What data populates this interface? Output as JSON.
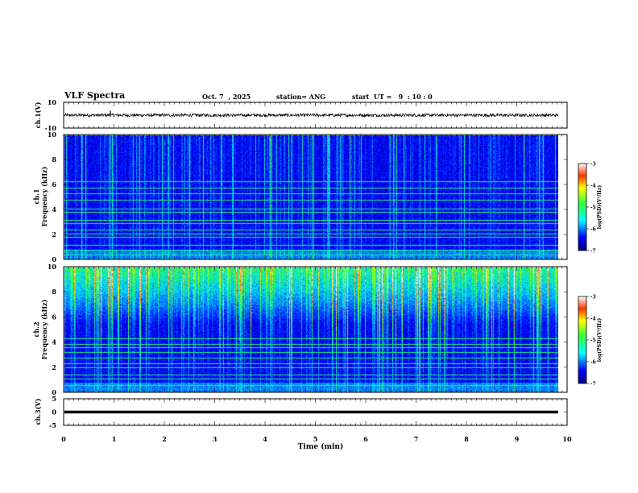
{
  "header": {
    "title": "VLF Spectra",
    "date": "Oct. 7  , 2025",
    "station": "station= ANG",
    "start": "start  UT =   9  : 10 : 0"
  },
  "chart_data": [
    {
      "type": "line",
      "name": "ch1-waveform",
      "ylabel": "ch.1(V)",
      "ylim": [
        -10,
        10
      ],
      "ytick_labels": [
        "10",
        "-10"
      ],
      "baseline": 0,
      "noise_amplitude": 1.2,
      "spikes": [
        {
          "x": 0.93,
          "y": 3.5
        },
        {
          "x": 1.75,
          "y": -1.2
        }
      ]
    },
    {
      "type": "heatmap",
      "name": "ch1-spectrogram",
      "ylabel_top": "ch.1",
      "ylabel": "Frequency  (kHz)",
      "ylim": [
        0,
        10
      ],
      "ytick_labels": [
        "0",
        "2",
        "4",
        "6",
        "8",
        "10"
      ],
      "xlim": [
        0,
        10
      ],
      "colorbar": {
        "label": "log(PSD)(V²/Hz)",
        "range": [
          -7,
          -3
        ],
        "tick_labels": [
          "-3",
          "-4",
          "-5",
          "-6",
          "-7"
        ]
      },
      "lines_khz": [
        0.4,
        0.8,
        1.2,
        1.8,
        2.1,
        2.4,
        2.9,
        3.2,
        3.8,
        4.1,
        4.8,
        5.3,
        5.8,
        6.3
      ],
      "sferic_intensity": 0.35
    },
    {
      "type": "heatmap",
      "name": "ch2-spectrogram",
      "ylabel_top": "ch.2",
      "ylabel": "Frequency  (kHz)",
      "ylim": [
        0,
        10
      ],
      "ytick_labels": [
        "0",
        "2",
        "4",
        "6",
        "8",
        "10"
      ],
      "xlim": [
        0,
        10
      ],
      "colorbar": {
        "label": "log(PSD)(V²/Hz)",
        "range": [
          -7,
          -3
        ],
        "tick_labels": [
          "-3",
          "-4",
          "-5",
          "-6",
          "-7"
        ]
      },
      "lines_khz": [
        0.6,
        1.1,
        1.4,
        2.0,
        2.3,
        2.8,
        3.2,
        3.6,
        3.9,
        4.3
      ],
      "sferic_intensity": 0.9
    },
    {
      "type": "line",
      "name": "ch3-waveform",
      "ylabel": "ch.3(V)",
      "ylim": [
        -5,
        5
      ],
      "ytick_labels": [
        "5",
        "0",
        "-5"
      ],
      "baseline": 0
    }
  ],
  "xaxis": {
    "xlabel": "Time  (min)",
    "xlim": [
      0,
      10
    ],
    "tick_labels": [
      "0",
      "1",
      "2",
      "3",
      "4",
      "5",
      "6",
      "7",
      "8",
      "9",
      "10"
    ],
    "data_end": 9.82
  }
}
